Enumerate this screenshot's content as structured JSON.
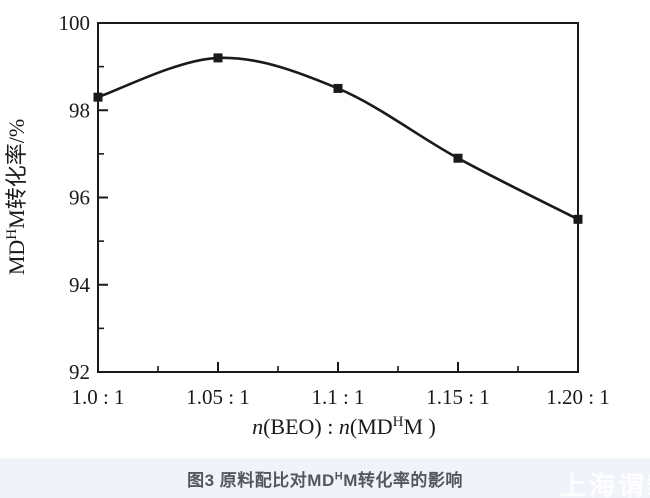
{
  "chart_data": {
    "type": "line",
    "title": "",
    "categories": [
      "1.0 : 1",
      "1.05 : 1",
      "1.1 : 1",
      "1.15 : 1",
      "1.20 : 1"
    ],
    "x_numeric": [
      1.0,
      1.05,
      1.1,
      1.15,
      1.2
    ],
    "series": [
      {
        "name": "MDHM conversion rate",
        "values": [
          98.3,
          99.2,
          98.5,
          96.9,
          95.5
        ]
      }
    ],
    "xlabel": "n(BEO) : n(MD H M )",
    "ylabel": "MD H M转化率/%",
    "xlabel_parts": {
      "n1": "n",
      "t1": "(BEO) : ",
      "n2": "n",
      "t2": "(MD",
      "sup": "H",
      "t3": "M )"
    },
    "ylabel_parts": {
      "t1": "MD",
      "sup": "H",
      "t2": "M转化率/%"
    },
    "ylim": [
      92,
      100
    ],
    "y_major_ticks": [
      92,
      94,
      96,
      98,
      100
    ],
    "y_tick_labels": [
      "92",
      "94",
      "96",
      "98",
      "100"
    ],
    "y_minor_ticks": [
      93,
      95,
      97,
      99
    ],
    "x_minor_ticks": [
      1.025,
      1.075,
      1.125,
      1.175
    ],
    "grid": false,
    "legend": "none",
    "line_color": "#1a1a1a",
    "marker": "square",
    "marker_size": 9,
    "frame_color": "#1a1a1a",
    "background": "#ffffff"
  },
  "caption": {
    "parts": {
      "t1": "图3 原料配比对MD",
      "sup": "H",
      "t2": "M转化率的影响"
    }
  },
  "watermark": {
    "text": "上海谓载"
  }
}
